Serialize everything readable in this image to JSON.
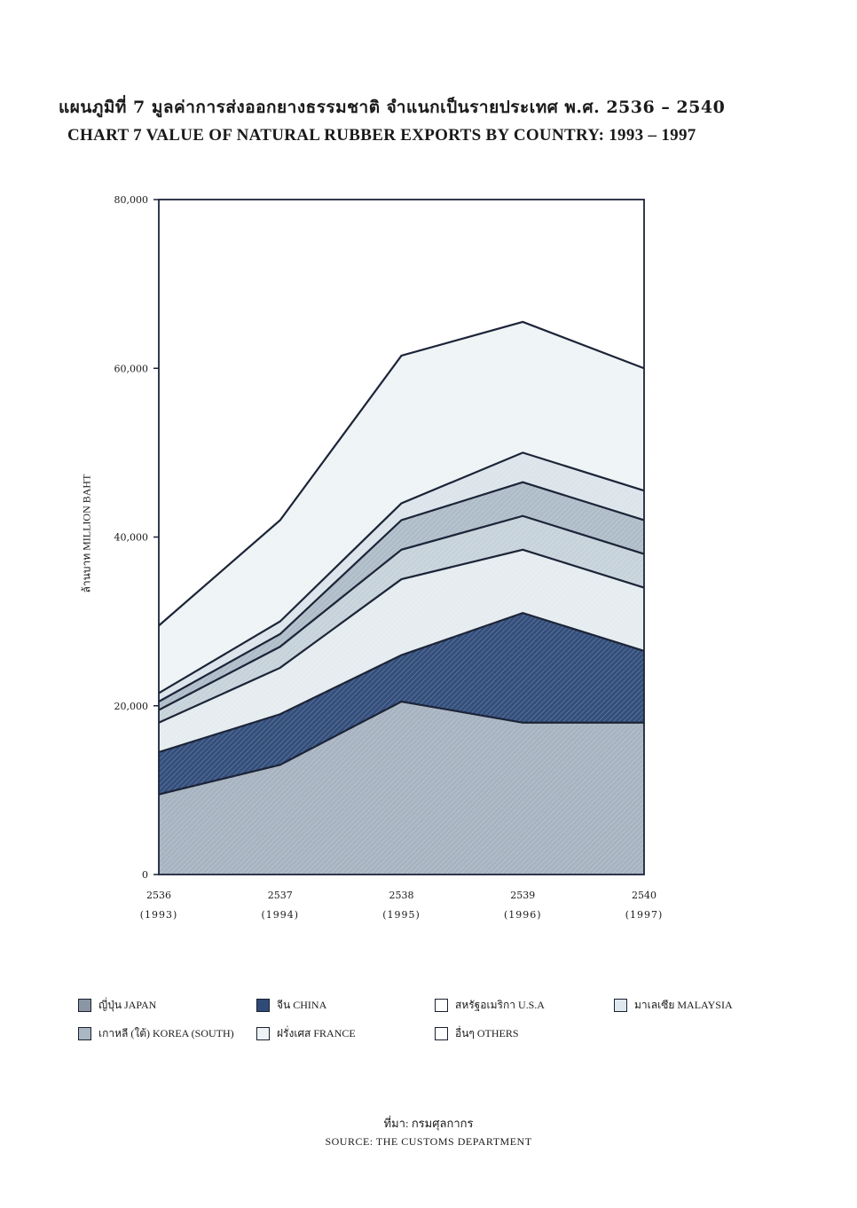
{
  "header": {
    "title_th": "แผนภูมิที่ 7   มูลค่าการส่งออกยางธรรมชาติ จำแนกเป็นรายประเทศ พ.ศ. 2536 – 2540",
    "title_en": "CHART 7   VALUE OF NATURAL RUBBER  EXPORTS BY COUNTRY: 1993 – 1997"
  },
  "chart_data": {
    "type": "area",
    "stacked": true,
    "title": "CHART 7   VALUE OF NATURAL RUBBER  EXPORTS BY COUNTRY: 1993 – 1997",
    "ylabel": "ล้านบาท MILLION BAHT",
    "ylim": [
      0,
      80000
    ],
    "yticks": [
      "0",
      "20,000",
      "40,000",
      "60,000",
      "80,000"
    ],
    "ytick_values": [
      0,
      20000,
      40000,
      60000,
      80000
    ],
    "categories": [
      {
        "top": "2536",
        "bottom": "(1993)"
      },
      {
        "top": "2537",
        "bottom": "(1994)"
      },
      {
        "top": "2538",
        "bottom": "(1995)"
      },
      {
        "top": "2539",
        "bottom": "(1996)"
      },
      {
        "top": "2540",
        "bottom": "(1997)"
      }
    ],
    "series": [
      {
        "name": "ญี่ปุ่น JAPAN",
        "color": "#a7b3c0",
        "values": [
          9500,
          13000,
          20500,
          18000,
          18000
        ]
      },
      {
        "name": "จีน CHINA",
        "color": "#344f7c",
        "values": [
          5000,
          6000,
          5500,
          13000,
          8500
        ]
      },
      {
        "name": "สหรัฐอเมริกา U.S.A",
        "color": "#e5ecef",
        "values": [
          3500,
          5500,
          9000,
          7500,
          7500
        ]
      },
      {
        "name": "มาเลเซีย MALAYSIA",
        "color": "#c6d2da",
        "values": [
          1500,
          2500,
          3500,
          4000,
          4000
        ]
      },
      {
        "name": "เกาหลี (ใต้) KOREA (SOUTH)",
        "color": "#aebcc8",
        "values": [
          1000,
          1500,
          3500,
          4000,
          4000
        ]
      },
      {
        "name": "ฝรั่งเศส FRANCE",
        "color": "#dbe4ea",
        "values": [
          1000,
          1500,
          2000,
          3500,
          3500
        ]
      },
      {
        "name": "อื่นๆ OTHERS",
        "color": "#eef3f5",
        "values": [
          8000,
          12000,
          17500,
          15500,
          14500
        ]
      }
    ]
  },
  "legend": {
    "items": [
      {
        "label": "ญี่ปุ่น JAPAN",
        "color": "#8a96a4"
      },
      {
        "label": "จีน CHINA",
        "color": "#2f4a78"
      },
      {
        "label": "สหรัฐอเมริกา U.S.A",
        "color": "#ffffff"
      },
      {
        "label": "มาเลเซีย MALAYSIA",
        "color": "#dfe8ee"
      },
      {
        "label": "เกาหลี (ใต้) KOREA (SOUTH)",
        "color": "#a9b7c3"
      },
      {
        "label": "ฝรั่งเศส FRANCE",
        "color": "#eef3f6"
      },
      {
        "label": "อื่นๆ OTHERS",
        "color": "#ffffff"
      }
    ]
  },
  "source": {
    "th": "ที่มา:  กรมศุลกากร",
    "en": "SOURCE:   THE CUSTOMS DEPARTMENT"
  }
}
